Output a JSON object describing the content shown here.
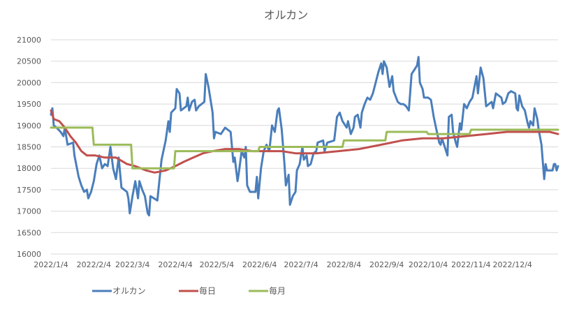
{
  "chart_data": {
    "type": "line",
    "title": "オルカン",
    "xlabel": "",
    "ylabel": "",
    "ylim": [
      16000,
      21000
    ],
    "y_ticks": [
      "16000",
      "16500",
      "17000",
      "17500",
      "18000",
      "18500",
      "19000",
      "19500",
      "20000",
      "20500",
      "21000"
    ],
    "x_ticks": [
      "2022/1/4",
      "2022/2/4",
      "2022/3/4",
      "2022/4/4",
      "2022/5/4",
      "2022/6/4",
      "2022/7/4",
      "2022/8/4",
      "2022/9/4",
      "2022/10/4",
      "2022/11/4",
      "2022/12/4"
    ],
    "grid": true,
    "legend_position": "bottom",
    "series": [
      {
        "name": "オルカン",
        "color": "#4a7ebb",
        "points": [
          [
            "2022-01-04",
            19250
          ],
          [
            "2022-01-05",
            19400
          ],
          [
            "2022-01-06",
            19000
          ],
          [
            "2022-01-08",
            18950
          ],
          [
            "2022-01-11",
            18850
          ],
          [
            "2022-01-13",
            18750
          ],
          [
            "2022-01-14",
            18950
          ],
          [
            "2022-01-16",
            18550
          ],
          [
            "2022-01-20",
            18600
          ],
          [
            "2022-01-21",
            18300
          ],
          [
            "2022-01-24",
            17800
          ],
          [
            "2022-01-26",
            17600
          ],
          [
            "2022-01-28",
            17450
          ],
          [
            "2022-01-30",
            17500
          ],
          [
            "2022-01-31",
            17300
          ],
          [
            "2022-02-02",
            17450
          ],
          [
            "2022-02-04",
            17700
          ],
          [
            "2022-02-06",
            18100
          ],
          [
            "2022-02-08",
            18300
          ],
          [
            "2022-02-10",
            18000
          ],
          [
            "2022-02-12",
            18100
          ],
          [
            "2022-02-14",
            18050
          ],
          [
            "2022-02-16",
            18500
          ],
          [
            "2022-02-18",
            18000
          ],
          [
            "2022-02-20",
            17750
          ],
          [
            "2022-02-22",
            18250
          ],
          [
            "2022-02-24",
            17550
          ],
          [
            "2022-02-26",
            17500
          ],
          [
            "2022-02-28",
            17450
          ],
          [
            "2022-03-01",
            17300
          ],
          [
            "2022-03-02",
            16950
          ],
          [
            "2022-03-04",
            17350
          ],
          [
            "2022-03-06",
            17700
          ],
          [
            "2022-03-08",
            17300
          ],
          [
            "2022-03-09",
            17700
          ],
          [
            "2022-03-11",
            17500
          ],
          [
            "2022-03-13",
            17350
          ],
          [
            "2022-03-15",
            16950
          ],
          [
            "2022-03-16",
            16900
          ],
          [
            "2022-03-17",
            17350
          ],
          [
            "2022-03-22",
            17250
          ],
          [
            "2022-03-25",
            18200
          ],
          [
            "2022-03-28",
            18650
          ],
          [
            "2022-03-30",
            19100
          ],
          [
            "2022-03-31",
            18850
          ],
          [
            "2022-04-01",
            19300
          ],
          [
            "2022-04-04",
            19400
          ],
          [
            "2022-04-05",
            19850
          ],
          [
            "2022-04-07",
            19750
          ],
          [
            "2022-04-08",
            19350
          ],
          [
            "2022-04-12",
            19450
          ],
          [
            "2022-04-13",
            19650
          ],
          [
            "2022-04-14",
            19350
          ],
          [
            "2022-04-16",
            19550
          ],
          [
            "2022-04-18",
            19600
          ],
          [
            "2022-04-19",
            19350
          ],
          [
            "2022-04-21",
            19450
          ],
          [
            "2022-04-25",
            19550
          ],
          [
            "2022-04-26",
            20200
          ],
          [
            "2022-04-28",
            19900
          ],
          [
            "2022-05-01",
            19300
          ],
          [
            "2022-05-02",
            18700
          ],
          [
            "2022-05-03",
            18850
          ],
          [
            "2022-05-07",
            18800
          ],
          [
            "2022-05-10",
            18950
          ],
          [
            "2022-05-14",
            18850
          ],
          [
            "2022-05-16",
            18150
          ],
          [
            "2022-05-17",
            18250
          ],
          [
            "2022-05-19",
            17700
          ],
          [
            "2022-05-20",
            17900
          ],
          [
            "2022-05-22",
            18400
          ],
          [
            "2022-05-24",
            18250
          ],
          [
            "2022-05-25",
            18500
          ],
          [
            "2022-05-26",
            17600
          ],
          [
            "2022-05-28",
            17450
          ],
          [
            "2022-06-01",
            17450
          ],
          [
            "2022-06-02",
            17800
          ],
          [
            "2022-06-03",
            17300
          ],
          [
            "2022-06-05",
            18000
          ],
          [
            "2022-06-07",
            18400
          ],
          [
            "2022-06-09",
            18550
          ],
          [
            "2022-06-11",
            18400
          ],
          [
            "2022-06-13",
            19000
          ],
          [
            "2022-06-15",
            18850
          ],
          [
            "2022-06-17",
            19350
          ],
          [
            "2022-06-18",
            19400
          ],
          [
            "2022-06-20",
            18900
          ],
          [
            "2022-06-22",
            18100
          ],
          [
            "2022-06-23",
            17600
          ],
          [
            "2022-06-25",
            17850
          ],
          [
            "2022-06-26",
            17150
          ],
          [
            "2022-06-28",
            17350
          ],
          [
            "2022-06-30",
            17450
          ],
          [
            "2022-07-01",
            17950
          ],
          [
            "2022-07-03",
            18100
          ],
          [
            "2022-07-05",
            18500
          ],
          [
            "2022-07-06",
            18200
          ],
          [
            "2022-07-08",
            18300
          ],
          [
            "2022-07-09",
            18050
          ],
          [
            "2022-07-11",
            18100
          ],
          [
            "2022-07-13",
            18350
          ],
          [
            "2022-07-15",
            18400
          ],
          [
            "2022-07-16",
            18600
          ],
          [
            "2022-07-20",
            18650
          ],
          [
            "2022-07-21",
            18400
          ],
          [
            "2022-07-23",
            18600
          ],
          [
            "2022-07-28",
            18650
          ],
          [
            "2022-07-30",
            19200
          ],
          [
            "2022-08-01",
            19300
          ],
          [
            "2022-08-03",
            19100
          ],
          [
            "2022-08-05",
            19000
          ],
          [
            "2022-08-06",
            18950
          ],
          [
            "2022-08-07",
            19100
          ],
          [
            "2022-08-09",
            18800
          ],
          [
            "2022-08-11",
            18950
          ],
          [
            "2022-08-12",
            19200
          ],
          [
            "2022-08-14",
            19250
          ],
          [
            "2022-08-16",
            18950
          ],
          [
            "2022-08-17",
            19300
          ],
          [
            "2022-08-19",
            19500
          ],
          [
            "2022-08-21",
            19650
          ],
          [
            "2022-08-23",
            19600
          ],
          [
            "2022-08-25",
            19750
          ],
          [
            "2022-08-27",
            20000
          ],
          [
            "2022-08-29",
            20250
          ],
          [
            "2022-08-31",
            20450
          ],
          [
            "2022-09-01",
            20200
          ],
          [
            "2022-09-02",
            20500
          ],
          [
            "2022-09-04",
            20350
          ],
          [
            "2022-09-06",
            19900
          ],
          [
            "2022-09-08",
            20150
          ],
          [
            "2022-09-09",
            19800
          ],
          [
            "2022-09-12",
            19550
          ],
          [
            "2022-09-14",
            19500
          ],
          [
            "2022-09-16",
            19500
          ],
          [
            "2022-09-18",
            19450
          ],
          [
            "2022-09-20",
            19350
          ],
          [
            "2022-09-22",
            20200
          ],
          [
            "2022-09-24",
            20300
          ],
          [
            "2022-09-26",
            20400
          ],
          [
            "2022-09-27",
            20600
          ],
          [
            "2022-09-28",
            20000
          ],
          [
            "2022-09-30",
            19850
          ],
          [
            "2022-10-01",
            19650
          ],
          [
            "2022-10-04",
            19650
          ],
          [
            "2022-10-06",
            19600
          ],
          [
            "2022-10-08",
            19200
          ],
          [
            "2022-10-10",
            18900
          ],
          [
            "2022-10-12",
            18600
          ],
          [
            "2022-10-13",
            18550
          ],
          [
            "2022-10-14",
            18700
          ],
          [
            "2022-10-16",
            18500
          ],
          [
            "2022-10-18",
            18300
          ],
          [
            "2022-10-19",
            19200
          ],
          [
            "2022-10-21",
            19250
          ],
          [
            "2022-10-22",
            18850
          ],
          [
            "2022-10-24",
            18600
          ],
          [
            "2022-10-25",
            18500
          ],
          [
            "2022-10-27",
            19050
          ],
          [
            "2022-10-28",
            18900
          ],
          [
            "2022-10-30",
            19500
          ],
          [
            "2022-11-01",
            19400
          ],
          [
            "2022-11-03",
            19550
          ],
          [
            "2022-11-05",
            19650
          ],
          [
            "2022-11-08",
            20150
          ],
          [
            "2022-11-09",
            19750
          ],
          [
            "2022-11-11",
            20350
          ],
          [
            "2022-11-13",
            20100
          ],
          [
            "2022-11-15",
            19450
          ],
          [
            "2022-11-17",
            19500
          ],
          [
            "2022-11-19",
            19550
          ],
          [
            "2022-11-20",
            19400
          ],
          [
            "2022-11-22",
            19750
          ],
          [
            "2022-11-24",
            19700
          ],
          [
            "2022-11-26",
            19650
          ],
          [
            "2022-11-27",
            19500
          ],
          [
            "2022-11-29",
            19550
          ],
          [
            "2022-12-01",
            19750
          ],
          [
            "2022-12-03",
            19800
          ],
          [
            "2022-12-06",
            19750
          ],
          [
            "2022-12-07",
            19400
          ],
          [
            "2022-12-08",
            19350
          ],
          [
            "2022-12-09",
            19700
          ],
          [
            "2022-12-11",
            19450
          ],
          [
            "2022-12-13",
            19350
          ],
          [
            "2022-12-15",
            19050
          ],
          [
            "2022-12-16",
            18950
          ],
          [
            "2022-12-17",
            19100
          ],
          [
            "2022-12-19",
            19000
          ],
          [
            "2022-12-20",
            19400
          ],
          [
            "2022-12-22",
            19150
          ],
          [
            "2022-12-23",
            18900
          ],
          [
            "2022-12-25",
            18550
          ],
          [
            "2022-12-26",
            18150
          ],
          [
            "2022-12-27",
            17750
          ],
          [
            "2022-12-28",
            18100
          ],
          [
            "2022-12-29",
            17950
          ],
          [
            "2022-12-31",
            17950
          ],
          [
            "2023-01-02",
            17950
          ],
          [
            "2023-01-03",
            18100
          ],
          [
            "2023-01-04",
            18100
          ],
          [
            "2023-01-05",
            17950
          ],
          [
            "2023-01-06",
            18050
          ]
        ]
      },
      {
        "name": "毎日",
        "color": "#c0504d",
        "points": [
          [
            "2022-01-04",
            19350
          ],
          [
            "2022-01-06",
            19150
          ],
          [
            "2022-01-10",
            19100
          ],
          [
            "2022-01-14",
            18950
          ],
          [
            "2022-01-18",
            18750
          ],
          [
            "2022-01-22",
            18600
          ],
          [
            "2022-01-26",
            18400
          ],
          [
            "2022-01-30",
            18300
          ],
          [
            "2022-02-05",
            18300
          ],
          [
            "2022-02-12",
            18250
          ],
          [
            "2022-02-20",
            18250
          ],
          [
            "2022-02-28",
            18100
          ],
          [
            "2022-03-06",
            18050
          ],
          [
            "2022-03-14",
            17950
          ],
          [
            "2022-03-20",
            17900
          ],
          [
            "2022-03-28",
            17950
          ],
          [
            "2022-04-04",
            18050
          ],
          [
            "2022-04-10",
            18150
          ],
          [
            "2022-04-17",
            18250
          ],
          [
            "2022-04-24",
            18350
          ],
          [
            "2022-05-01",
            18400
          ],
          [
            "2022-05-10",
            18450
          ],
          [
            "2022-05-20",
            18450
          ],
          [
            "2022-05-30",
            18400
          ],
          [
            "2022-06-10",
            18400
          ],
          [
            "2022-06-20",
            18400
          ],
          [
            "2022-06-30",
            18350
          ],
          [
            "2022-07-15",
            18350
          ],
          [
            "2022-07-31",
            18400
          ],
          [
            "2022-08-15",
            18450
          ],
          [
            "2022-08-31",
            18550
          ],
          [
            "2022-09-15",
            18650
          ],
          [
            "2022-09-30",
            18700
          ],
          [
            "2022-10-15",
            18700
          ],
          [
            "2022-10-31",
            18750
          ],
          [
            "2022-11-15",
            18800
          ],
          [
            "2022-11-30",
            18850
          ],
          [
            "2022-12-15",
            18850
          ],
          [
            "2022-12-31",
            18850
          ],
          [
            "2023-01-06",
            18800
          ]
        ]
      },
      {
        "name": "毎月",
        "color": "#9bbb59",
        "points": [
          [
            "2022-01-04",
            18950
          ],
          [
            "2022-02-03",
            18950
          ],
          [
            "2022-02-04",
            18550
          ],
          [
            "2022-03-03",
            18550
          ],
          [
            "2022-03-04",
            18000
          ],
          [
            "2022-04-03",
            18000
          ],
          [
            "2022-04-04",
            18400
          ],
          [
            "2022-06-03",
            18400
          ],
          [
            "2022-06-04",
            18500
          ],
          [
            "2022-08-03",
            18500
          ],
          [
            "2022-08-04",
            18650
          ],
          [
            "2022-09-03",
            18650
          ],
          [
            "2022-09-04",
            18850
          ],
          [
            "2022-10-03",
            18850
          ],
          [
            "2022-10-04",
            18800
          ],
          [
            "2022-11-03",
            18800
          ],
          [
            "2022-11-04",
            18900
          ],
          [
            "2023-01-06",
            18900
          ]
        ]
      }
    ]
  }
}
